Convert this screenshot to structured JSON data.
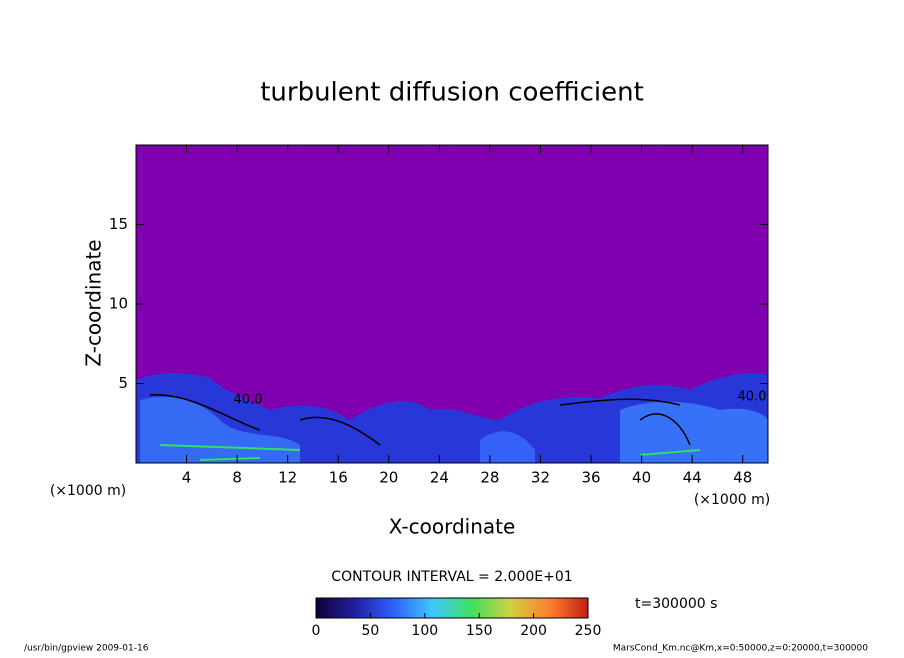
{
  "chart_data": {
    "type": "contour",
    "title": "turbulent diffusion coefficient",
    "x_label": "X-coordinate",
    "y_label": "Z-coordinate",
    "x_unit": "(×1000 m)",
    "y_unit": "(×1000 m)",
    "xlim": [
      0,
      50
    ],
    "xticks": [
      4,
      8,
      12,
      16,
      20,
      24,
      28,
      32,
      36,
      40,
      44,
      48
    ],
    "ylim": [
      0,
      20
    ],
    "yticks": [
      5,
      10,
      15
    ],
    "annotations": [
      "40.0",
      "40.0"
    ],
    "contour_interval": "CONTOUR INTERVAL = 2.000E+01",
    "time_label": "t=300000 s",
    "colorbar": {
      "lim": [
        0,
        250
      ],
      "ticks": [
        0,
        50,
        100,
        150,
        200,
        250
      ],
      "colors": [
        "#10003a",
        "#2020a0",
        "#3060ff",
        "#40c8ff",
        "#40e060",
        "#d0d040",
        "#ff8030",
        "#c02010"
      ]
    },
    "footer_left": "/usr/bin/gpview  2009-01-16",
    "footer_right": "MarsCond_Km.nc@Km,x=0:50000,z=0:20000,t=300000"
  }
}
